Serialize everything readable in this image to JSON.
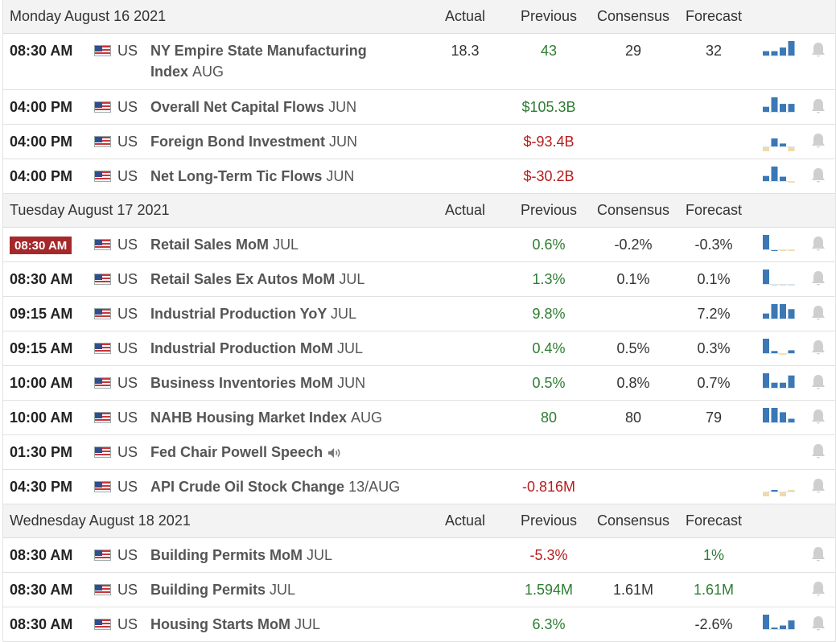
{
  "columns": {
    "actual": "Actual",
    "previous": "Previous",
    "consensus": "Consensus",
    "forecast": "Forecast"
  },
  "days": [
    {
      "date": "Monday August 16 2021",
      "events": [
        {
          "time": "08:30 AM",
          "country": "US",
          "name": "NY Empire State Manufacturing",
          "name2": "Index",
          "period": "AUG",
          "actual": "18.3",
          "actual_color": "neutral",
          "previous": "43",
          "previous_color": "green",
          "consensus": "29",
          "forecast": "32",
          "forecast_color": "neutral",
          "tall": true,
          "spark": {
            "bars": [
              0.3,
              0.3,
              0.55,
              1.0
            ],
            "colors": [
              "#3b78b5",
              "#3b78b5",
              "#3b78b5",
              "#3b78b5"
            ]
          }
        },
        {
          "time": "04:00 PM",
          "country": "US",
          "name": "Overall Net Capital Flows",
          "period": "JUN",
          "actual": "",
          "previous": "$105.3B",
          "previous_color": "green",
          "consensus": "",
          "forecast": "",
          "spark": {
            "bars": [
              0.35,
              1.0,
              0.55,
              0.55
            ],
            "colors": [
              "#3b78b5",
              "#3b78b5",
              "#3b78b5",
              "#3b78b5"
            ]
          }
        },
        {
          "time": "04:00 PM",
          "country": "US",
          "name": "Foreign Bond Investment",
          "period": "JUN",
          "actual": "",
          "previous": "$-93.4B",
          "previous_color": "red",
          "consensus": "",
          "forecast": "",
          "spark": {
            "bars": [
              -0.4,
              0.55,
              0.2,
              -0.55
            ],
            "colors": [
              "#f2d9a8",
              "#3b78b5",
              "#3b78b5",
              "#f2d9a8"
            ]
          }
        },
        {
          "time": "04:00 PM",
          "country": "US",
          "name": "Net Long-Term Tic Flows",
          "period": "JUN",
          "actual": "",
          "previous": "$-30.2B",
          "previous_color": "red",
          "consensus": "",
          "forecast": "",
          "spark": {
            "bars": [
              0.35,
              1.0,
              0.3,
              -0.1
            ],
            "colors": [
              "#3b78b5",
              "#3b78b5",
              "#3b78b5",
              "#f2d9a8"
            ]
          }
        }
      ]
    },
    {
      "date": "Tuesday August 17 2021",
      "events": [
        {
          "time": "08:30 AM",
          "live": true,
          "country": "US",
          "name": "Retail Sales MoM",
          "period": "JUL",
          "actual": "",
          "previous": "0.6%",
          "previous_color": "green",
          "consensus": "-0.2%",
          "forecast": "-0.3%",
          "forecast_color": "neutral",
          "spark": {
            "bars": [
              1.0,
              -0.08,
              -0.08,
              -0.08
            ],
            "colors": [
              "#3b78b5",
              "#3b78b5",
              "#f2d9a8",
              "#f2d9a8"
            ]
          }
        },
        {
          "time": "08:30 AM",
          "country": "US",
          "name": "Retail Sales Ex Autos MoM",
          "period": "JUL",
          "actual": "",
          "previous": "1.3%",
          "previous_color": "green",
          "consensus": "0.1%",
          "forecast": "0.1%",
          "forecast_color": "neutral",
          "spark": {
            "bars": [
              1.0,
              -0.08,
              -0.08,
              -0.08
            ],
            "colors": [
              "#3b78b5",
              "#f2d9a8",
              "#f2d9a8",
              "#f2d9a8"
            ]
          }
        },
        {
          "time": "09:15 AM",
          "country": "US",
          "name": "Industrial Production YoY",
          "period": "JUL",
          "actual": "",
          "previous": "9.8%",
          "previous_color": "green",
          "consensus": "",
          "forecast": "7.2%",
          "forecast_color": "neutral",
          "spark": {
            "bars": [
              0.35,
              1.0,
              1.0,
              0.65
            ],
            "colors": [
              "#3b78b5",
              "#3b78b5",
              "#3b78b5",
              "#3b78b5"
            ]
          }
        },
        {
          "time": "09:15 AM",
          "country": "US",
          "name": "Industrial Production MoM",
          "period": "JUL",
          "actual": "",
          "previous": "0.4%",
          "previous_color": "green",
          "consensus": "0.5%",
          "forecast": "0.3%",
          "forecast_color": "neutral",
          "spark": {
            "bars": [
              1.0,
              0.15,
              -0.08,
              0.2
            ],
            "colors": [
              "#3b78b5",
              "#3b78b5",
              "#f2d9a8",
              "#3b78b5"
            ]
          }
        },
        {
          "time": "10:00 AM",
          "country": "US",
          "name": "Business Inventories MoM",
          "period": "JUN",
          "actual": "",
          "previous": "0.5%",
          "previous_color": "green",
          "consensus": "0.8%",
          "forecast": "0.7%",
          "forecast_color": "neutral",
          "spark": {
            "bars": [
              1.0,
              0.35,
              0.35,
              0.85
            ],
            "colors": [
              "#3b78b5",
              "#3b78b5",
              "#3b78b5",
              "#3b78b5"
            ]
          }
        },
        {
          "time": "10:00 AM",
          "country": "US",
          "name": "NAHB Housing Market Index",
          "period": "AUG",
          "actual": "",
          "previous": "80",
          "previous_color": "green",
          "consensus": "80",
          "forecast": "79",
          "forecast_color": "neutral",
          "spark": {
            "bars": [
              1.0,
              1.0,
              0.7,
              0.25
            ],
            "colors": [
              "#3b78b5",
              "#3b78b5",
              "#3b78b5",
              "#3b78b5"
            ]
          }
        },
        {
          "time": "01:30 PM",
          "country": "US",
          "name": "Fed Chair Powell Speech",
          "period": "",
          "speaker": true,
          "actual": "",
          "previous": "",
          "consensus": "",
          "forecast": "",
          "spark": null
        },
        {
          "time": "04:30 PM",
          "country": "US",
          "name": "API Crude Oil Stock Change",
          "period": "13/AUG",
          "actual": "",
          "previous": "-0.816M",
          "previous_color": "red",
          "consensus": "",
          "forecast": "",
          "spark": {
            "bars": [
              -0.5,
              0.1,
              -0.6,
              0.1
            ],
            "colors": [
              "#f2d9a8",
              "#3b78b5",
              "#f2d9a8",
              "#f2d9a8"
            ]
          }
        }
      ]
    },
    {
      "date": "Wednesday August 18 2021",
      "events": [
        {
          "time": "08:30 AM",
          "country": "US",
          "name": "Building Permits MoM",
          "period": "JUL",
          "actual": "",
          "previous": "-5.3%",
          "previous_color": "red",
          "consensus": "",
          "forecast": "1%",
          "forecast_color": "green",
          "spark": null
        },
        {
          "time": "08:30 AM",
          "country": "US",
          "name": "Building Permits",
          "period": "JUL",
          "actual": "",
          "previous": "1.594M",
          "previous_color": "green",
          "consensus": "1.61M",
          "forecast": "1.61M",
          "forecast_color": "green",
          "spark": null
        },
        {
          "time": "08:30 AM",
          "country": "US",
          "name": "Housing Starts MoM",
          "period": "JUL",
          "actual": "",
          "previous": "6.3%",
          "previous_color": "green",
          "consensus": "",
          "forecast": "-2.6%",
          "forecast_color": "neutral",
          "spark": {
            "bars": [
              1.0,
              0.1,
              0.25,
              0.6
            ],
            "colors": [
              "#3b78b5",
              "#3b78b5",
              "#3b78b5",
              "#3b78b5"
            ]
          }
        }
      ]
    }
  ]
}
